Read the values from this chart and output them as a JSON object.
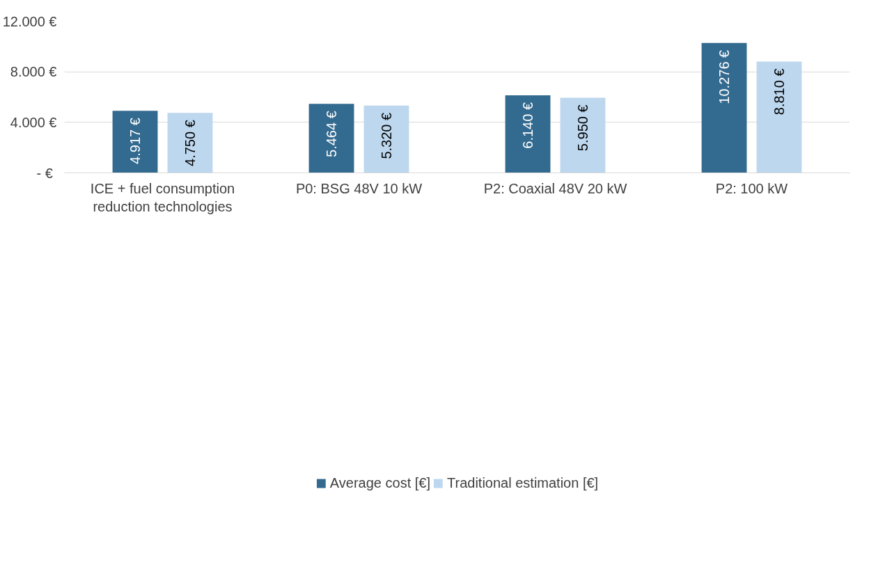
{
  "chart_data": {
    "type": "bar",
    "categories": [
      "ICE + fuel consumption reduction technologies",
      "P0: BSG 48V 10 kW",
      "P2: Coaxial 48V 20 kW",
      "P2: 100 kW"
    ],
    "series": [
      {
        "name": "Average cost [€]",
        "color": "#336a8f",
        "values": [
          4917,
          5464,
          6140,
          10276
        ],
        "value_labels": [
          "4.917 €",
          "5.464 €",
          "6.140 €",
          "10.276 €"
        ]
      },
      {
        "name": "Traditional estimation [€]",
        "color": "#bdd7ee",
        "values": [
          4750,
          5320,
          5950,
          8810
        ],
        "value_labels": [
          "4.750 €",
          "5.320 €",
          "5.950 €",
          "8.810 €"
        ]
      }
    ],
    "ylim": [
      0,
      12000
    ],
    "yticks": [
      {
        "value": 0,
        "label": "-  €"
      },
      {
        "value": 4000,
        "label": "4.000 €"
      },
      {
        "value": 8000,
        "label": "8.000 €"
      },
      {
        "value": 12000,
        "label": "12.000 €"
      }
    ],
    "grid": "y",
    "legend": "bottom"
  }
}
